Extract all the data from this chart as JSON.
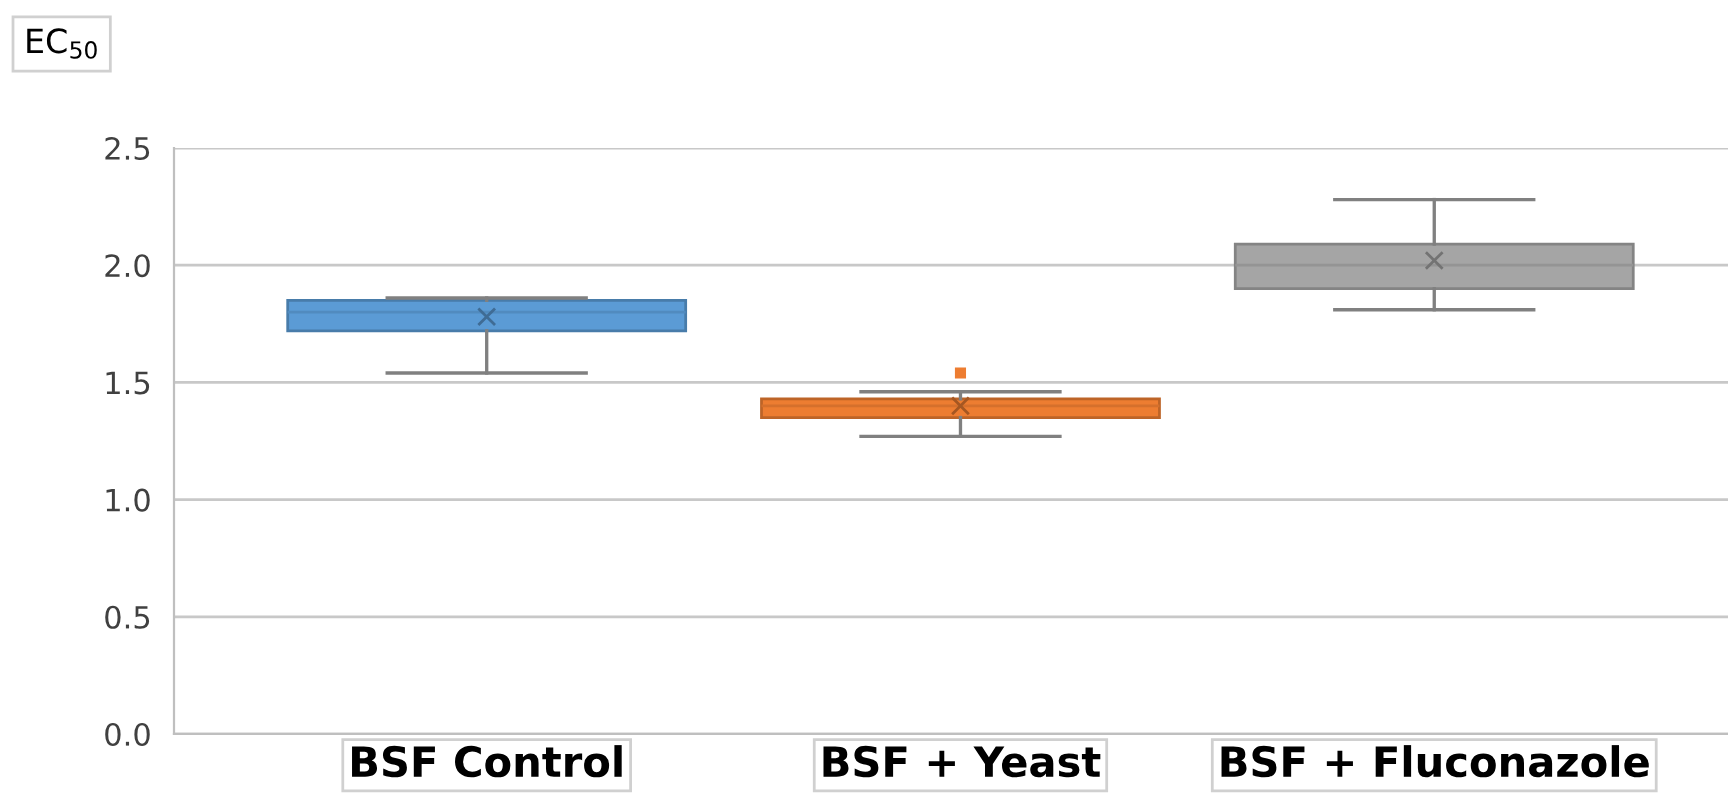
{
  "chart_data": {
    "type": "box",
    "ylabel": "EC$_{50}$",
    "categories": [
      "BSF Control",
      "BSF + Yeast",
      "BSF + Fluconazole"
    ],
    "series": [
      {
        "colors": [
          "#5b9bd5",
          "#ed7d31",
          "#a5a5a5"
        ],
        "boxes": [
          {
            "low": 1.54,
            "q1": 1.72,
            "median": 1.8,
            "q3": 1.85,
            "high": 1.86,
            "mean": 1.78
          },
          {
            "low": 1.27,
            "q1": 1.35,
            "median": 1.4,
            "q3": 1.43,
            "high": 1.46,
            "mean": 1.4,
            "outliers": [
              1.54
            ]
          },
          {
            "low": 1.81,
            "q1": 1.9,
            "median": 2.0,
            "q3": 2.09,
            "high": 2.28,
            "mean": 2.02
          }
        ]
      }
    ],
    "ylim": [
      0,
      2.5
    ],
    "yticks": [
      {
        "value": 0,
        "label": "0.0"
      },
      {
        "value": 0.5,
        "label": "0.5"
      },
      {
        "value": 1.0,
        "label": "1.0"
      },
      {
        "value": 1.5,
        "label": "1.5"
      },
      {
        "value": 2.0,
        "label": "2.0"
      },
      {
        "value": 2.5,
        "label": "2.5"
      }
    ],
    "grid": "y",
    "legend": false
  }
}
